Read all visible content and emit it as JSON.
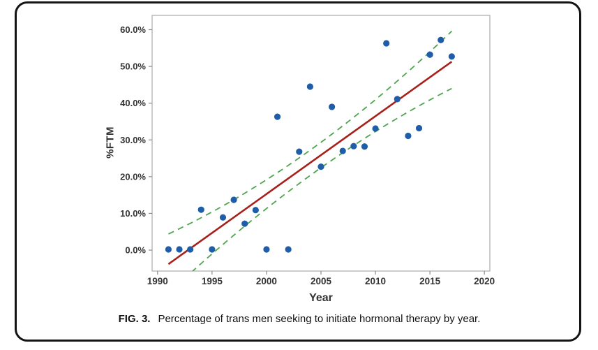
{
  "figure": {
    "caption_label": "FIG. 3.",
    "caption_text": "Percentage of trans men seeking to initiate hormonal therapy by year."
  },
  "chart_data": {
    "type": "scatter",
    "title": "",
    "xlabel": "Year",
    "ylabel": "%FTM",
    "xlim": [
      1989.5,
      2020.5
    ],
    "ylim": [
      -5.7,
      63.9
    ],
    "x_ticks": [
      1990,
      1995,
      2000,
      2005,
      2010,
      2015,
      2020
    ],
    "y_ticks": [
      0,
      10,
      20,
      30,
      40,
      50,
      60
    ],
    "y_tick_suffix": "%",
    "y_tick_decimals": 1,
    "grid": false,
    "legend": false,
    "frame_color": "#ababab",
    "tick_color": "#8c8c8c",
    "series": [
      {
        "name": "observed-percent-ftm",
        "type": "scatter",
        "color": "#1f5da8",
        "marker_radius": 4.6,
        "points": [
          [
            1991,
            0.2
          ],
          [
            1992,
            0.2
          ],
          [
            1993,
            0.2
          ],
          [
            1994,
            11.0
          ],
          [
            1995,
            0.2
          ],
          [
            1996,
            8.9
          ],
          [
            1997,
            13.7
          ],
          [
            1998,
            7.2
          ],
          [
            1999,
            10.9
          ],
          [
            2000,
            0.2
          ],
          [
            2001,
            36.3
          ],
          [
            2002,
            0.2
          ],
          [
            2003,
            26.8
          ],
          [
            2004,
            44.5
          ],
          [
            2005,
            22.7
          ],
          [
            2006,
            39.0
          ],
          [
            2007,
            27.0
          ],
          [
            2008,
            28.3
          ],
          [
            2009,
            28.2
          ],
          [
            2010,
            33.1
          ],
          [
            2011,
            56.3
          ],
          [
            2012,
            41.1
          ],
          [
            2013,
            31.1
          ],
          [
            2014,
            33.2
          ],
          [
            2015,
            53.2
          ],
          [
            2016,
            57.2
          ],
          [
            2017,
            52.7
          ]
        ]
      },
      {
        "name": "fitted-trend-line",
        "type": "line",
        "color": "#a6211c",
        "width": 2.6,
        "points": [
          [
            1991,
            -3.8
          ],
          [
            2017,
            51.3
          ]
        ]
      },
      {
        "name": "upper-confidence-band",
        "type": "dashed-curve",
        "color": "#4ea44e",
        "width": 1.8,
        "dash": "8.5 6.5",
        "points": [
          [
            1991,
            4.4
          ],
          [
            2004,
            27.2
          ],
          [
            2017,
            59.6
          ]
        ]
      },
      {
        "name": "lower-confidence-band",
        "type": "dashed-curve",
        "color": "#4ea44e",
        "width": 1.8,
        "dash": "8.5 6.5",
        "points": [
          [
            1991,
            -11.8
          ],
          [
            2004,
            20.3
          ],
          [
            2017,
            44.0
          ]
        ]
      }
    ]
  }
}
